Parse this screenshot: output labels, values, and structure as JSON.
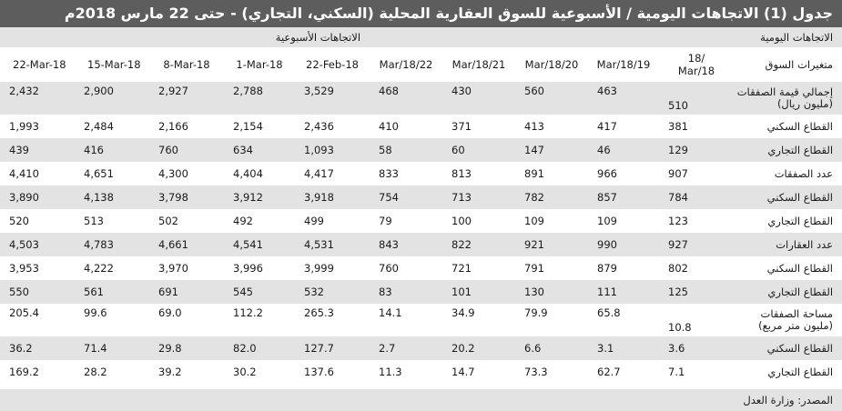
{
  "title": "جدول (1) الاتجاهات اليومية / الأسبوعية للسوق العقارية المحلية (السكني، التجاري) - حتى 22 مارس 2018م",
  "headers": {
    "daily": "الاتجاهات اليومية",
    "weekly": "الاتجاهات الأسبوعية",
    "indicator": "متغيرات السوق",
    "col_first_line1": "18/",
    "col_first_line2": "Mar/18",
    "cols": [
      "Mar/18/19",
      "Mar/18/20",
      "Mar/18/21",
      "Mar/18/22",
      "22-Feb-18",
      "1-Mar-18",
      "8-Mar-18",
      "15-Mar-18",
      "22-Mar-18"
    ]
  },
  "rows": [
    {
      "label": "إجمالي قيمة الصفقات",
      "label2": "(مليون ريال)",
      "values": [
        "510",
        "463",
        "560",
        "430",
        "468",
        "3,529",
        "2,788",
        "2,927",
        "2,900",
        "2,432"
      ]
    },
    {
      "label": "القطاع السكني",
      "values": [
        "381",
        "417",
        "413",
        "371",
        "410",
        "2,436",
        "2,154",
        "2,166",
        "2,484",
        "1,993"
      ]
    },
    {
      "label": "القطاع التجاري",
      "values": [
        "129",
        "46",
        "147",
        "60",
        "58",
        "1,093",
        "634",
        "760",
        "416",
        "439"
      ]
    },
    {
      "label": "عدد الصفقات",
      "values": [
        "907",
        "966",
        "891",
        "813",
        "833",
        "4,417",
        "4,404",
        "4,300",
        "4,651",
        "4,410"
      ]
    },
    {
      "label": "القطاع السكني",
      "values": [
        "784",
        "857",
        "782",
        "713",
        "754",
        "3,918",
        "3,912",
        "3,798",
        "4,138",
        "3,890"
      ]
    },
    {
      "label": "القطاع التجاري",
      "values": [
        "123",
        "109",
        "109",
        "100",
        "79",
        "499",
        "492",
        "502",
        "513",
        "520"
      ]
    },
    {
      "label": "عدد العقارات",
      "values": [
        "927",
        "990",
        "921",
        "822",
        "843",
        "4,531",
        "4,541",
        "4,661",
        "4,783",
        "4,503"
      ]
    },
    {
      "label": "القطاع السكني",
      "values": [
        "802",
        "879",
        "791",
        "721",
        "760",
        "3,999",
        "3,996",
        "3,970",
        "4,222",
        "3,953"
      ]
    },
    {
      "label": "القطاع التجاري",
      "values": [
        "125",
        "111",
        "130",
        "101",
        "83",
        "532",
        "545",
        "691",
        "561",
        "550"
      ]
    },
    {
      "label": "مساحة الصفقات",
      "label2": "(مليون متر مربع)",
      "values": [
        "10.8",
        "65.8",
        "79.9",
        "34.9",
        "14.1",
        "265.3",
        "112.2",
        "69.0",
        "99.6",
        "205.4"
      ]
    },
    {
      "label": "القطاع السكني",
      "values": [
        "3.6",
        "3.1",
        "6.6",
        "20.2",
        "2.7",
        "127.7",
        "82.0",
        "29.8",
        "71.4",
        "36.2"
      ]
    },
    {
      "label": "القطاع التجاري",
      "values": [
        "7.1",
        "62.7",
        "73.3",
        "14.7",
        "11.3",
        "137.6",
        "30.2",
        "39.2",
        "28.2",
        "169.2"
      ]
    }
  ],
  "source": "المصدر: وزارة العدل"
}
